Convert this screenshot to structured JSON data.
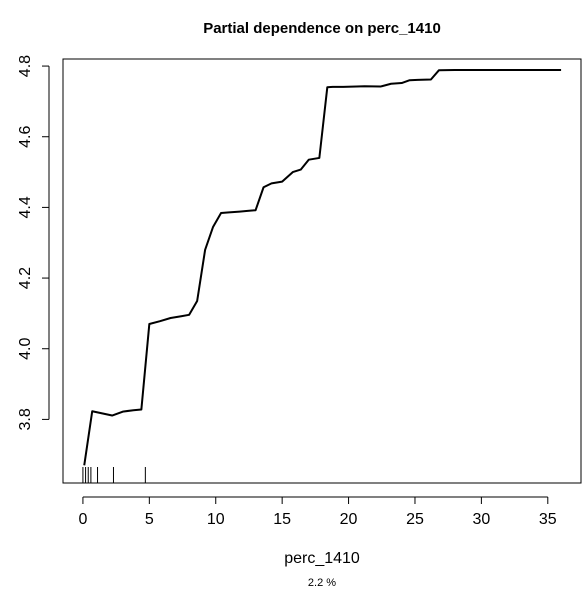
{
  "chart_data": {
    "type": "line",
    "title": "Partial dependence on perc_1410",
    "xlabel": "perc_1410",
    "subtitle": "2.2 %",
    "ylabel": "",
    "xlim": [
      -1.5,
      37.5
    ],
    "ylim": [
      3.62,
      4.82
    ],
    "x_ticks": [
      0,
      5,
      10,
      15,
      20,
      25,
      30,
      35
    ],
    "y_ticks": [
      3.8,
      4.0,
      4.2,
      4.4,
      4.6,
      4.8
    ],
    "grid": false,
    "legend": "none",
    "line_color": "#000000",
    "series": [
      {
        "name": "",
        "x": [
          0.1,
          0.7,
          2.2,
          3.0,
          3.8,
          4.4,
          5.0,
          5.8,
          6.6,
          7.4,
          8.0,
          8.6,
          9.2,
          9.8,
          10.4,
          11.0,
          11.8,
          12.4,
          13.0,
          13.6,
          14.2,
          15.0,
          15.8,
          16.4,
          17.0,
          17.8,
          18.4,
          18.8,
          19.6,
          20.6,
          21.2,
          22.4,
          23.2,
          24.0,
          24.6,
          25.2,
          26.2,
          26.8,
          28.0,
          30.0,
          33.0,
          36.0
        ],
        "y": [
          3.67,
          3.823,
          3.811,
          3.822,
          3.826,
          3.828,
          4.07,
          4.078,
          4.087,
          4.092,
          4.096,
          4.135,
          4.28,
          4.345,
          4.384,
          4.386,
          4.388,
          4.39,
          4.392,
          4.457,
          4.468,
          4.473,
          4.5,
          4.507,
          4.535,
          4.54,
          4.74,
          4.741,
          4.741,
          4.742,
          4.743,
          4.742,
          4.75,
          4.752,
          4.76,
          4.761,
          4.762,
          4.788,
          4.789,
          4.789,
          4.789,
          4.789
        ]
      }
    ],
    "rug_x": [
      0.0,
      0.2,
      0.4,
      0.6,
      1.1,
      2.3,
      4.7
    ]
  }
}
